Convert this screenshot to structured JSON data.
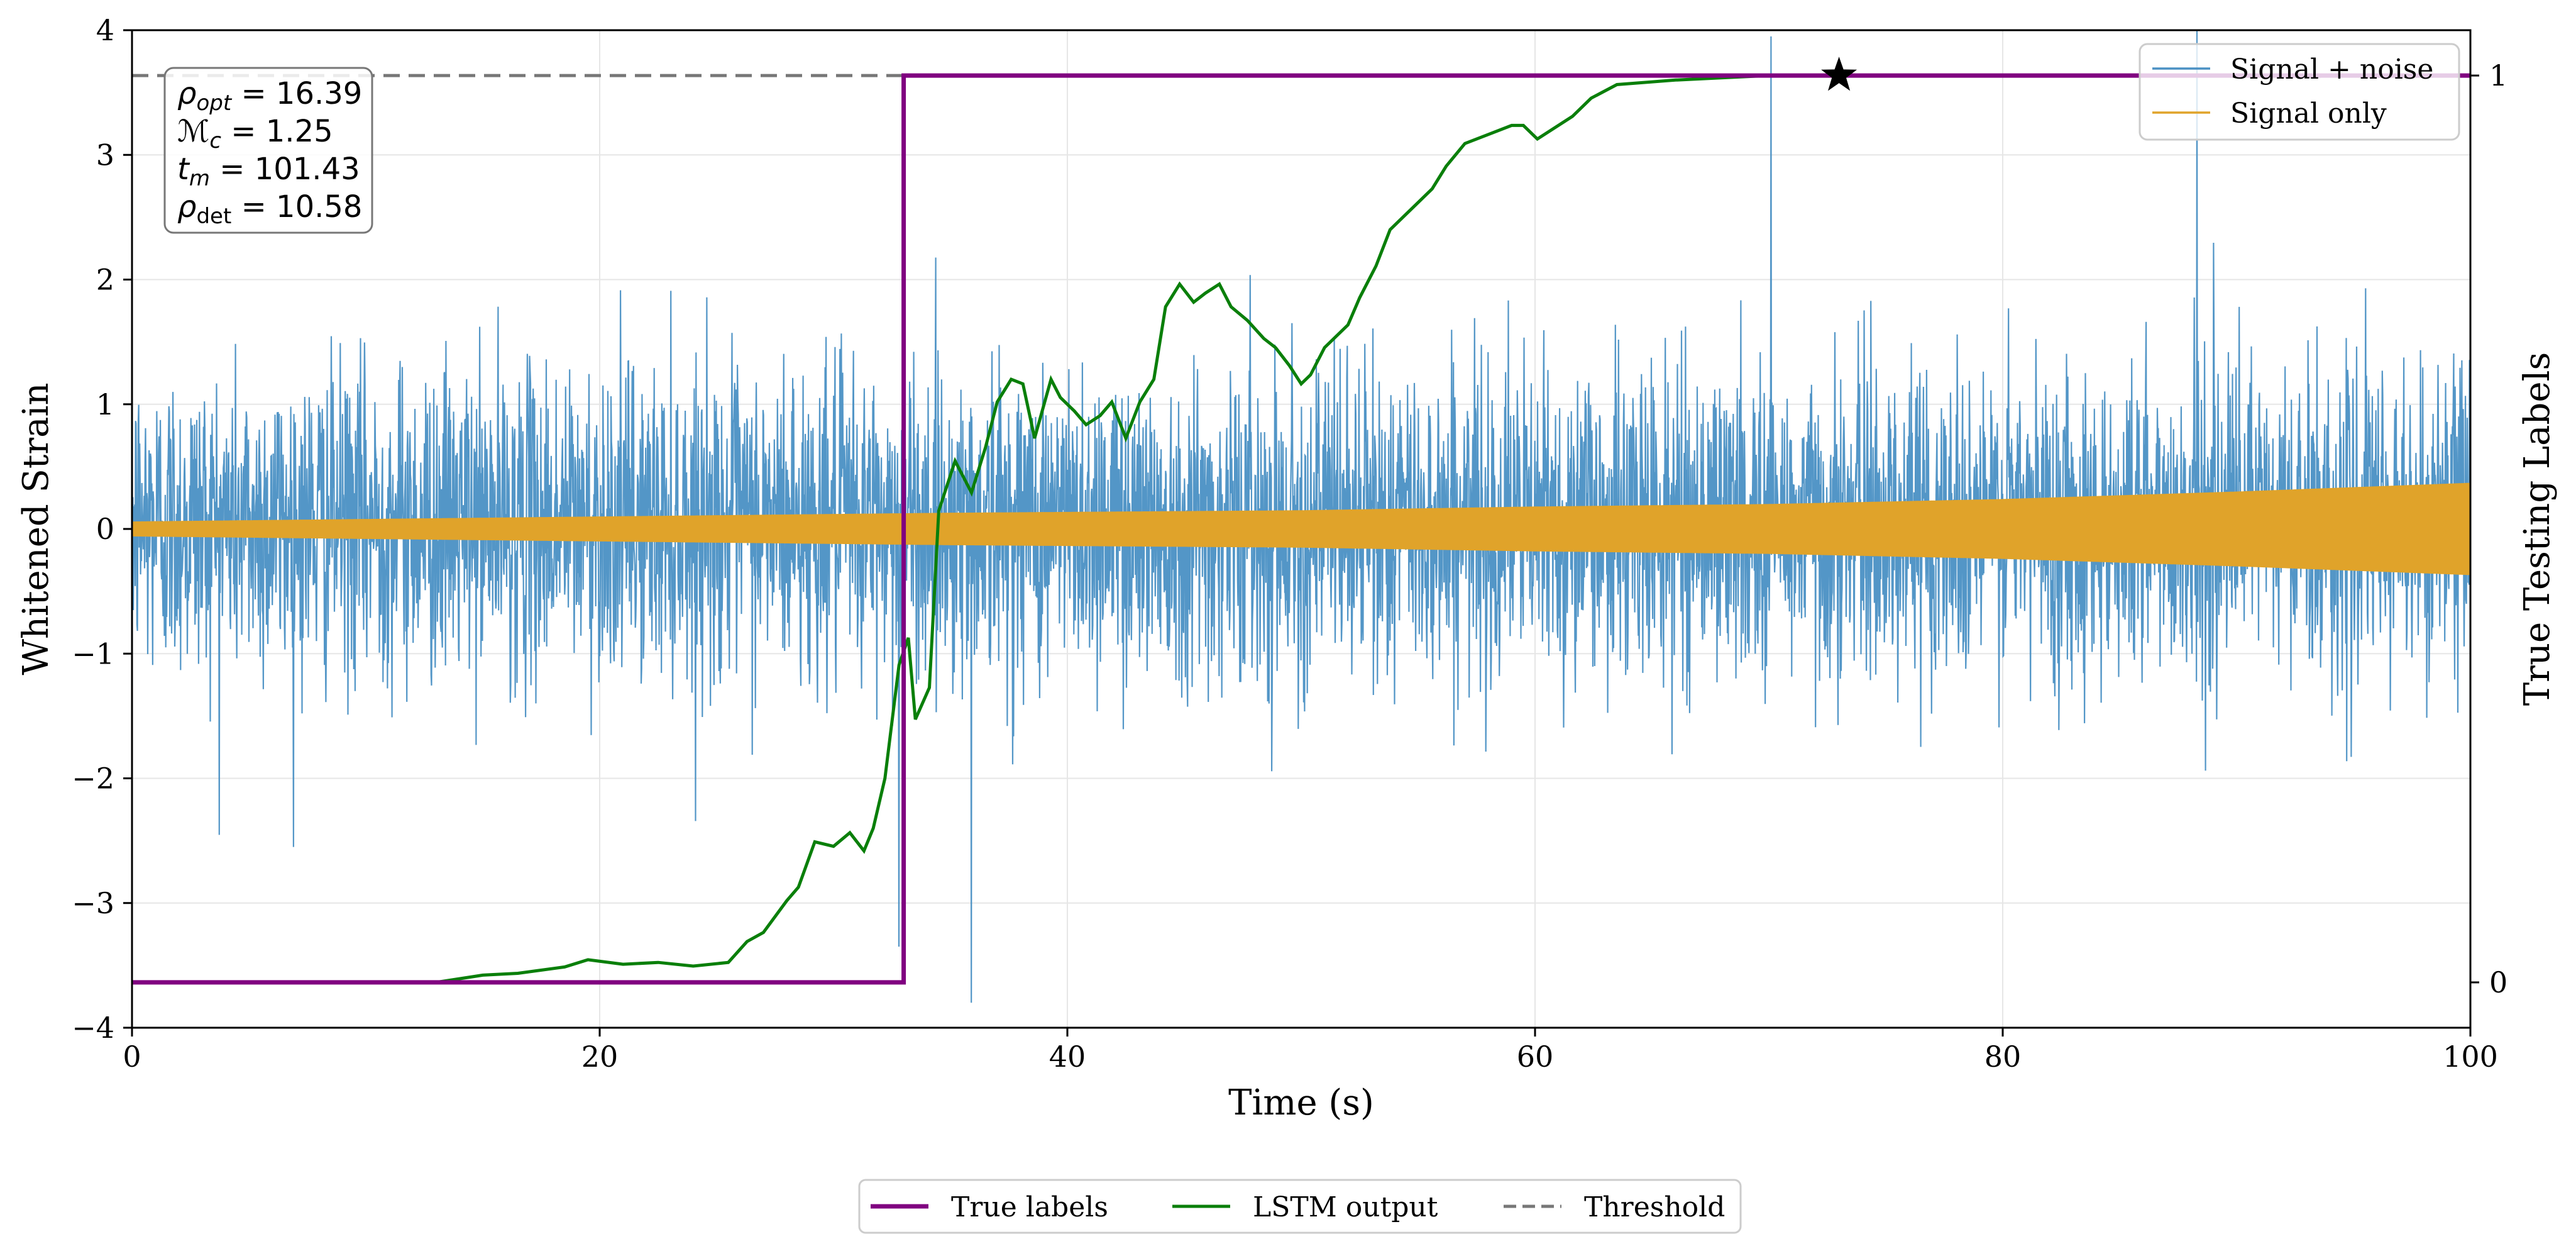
{
  "chart_data": {
    "type": "line",
    "xlabel": "Time (s)",
    "ylabel": "Whitened Strain",
    "y2label": "True Testing Labels",
    "xlim": [
      0,
      100
    ],
    "ylim": [
      -4,
      4
    ],
    "y2lim": [
      -0.05,
      1.05
    ],
    "xticks": [
      0,
      20,
      40,
      60,
      80,
      100
    ],
    "xtick_labels": [
      "0",
      "20",
      "40",
      "60",
      "80",
      "100"
    ],
    "yticks": [
      -4,
      -3,
      -2,
      -1,
      0,
      1,
      2,
      3,
      4
    ],
    "ytick_labels": [
      "−4",
      "−3",
      "−2",
      "−1",
      "0",
      "1",
      "2",
      "3",
      "4"
    ],
    "y2ticks": [
      0,
      1
    ],
    "y2tick_labels": [
      "0",
      "1"
    ],
    "grid": true,
    "series": [
      {
        "name": "Signal + noise",
        "axis": "left",
        "color": "#4a90c4",
        "description": "whitened noisy strain, roughly within ±2 with spikes to ±4",
        "typical_band": [
          -1.6,
          1.8
        ],
        "notable_peaks": [
          [
            70.1,
            3.95
          ],
          [
            88.3,
            4.0
          ],
          [
            35.9,
            -3.8
          ],
          [
            32.8,
            -3.35
          ]
        ]
      },
      {
        "name": "Signal only",
        "axis": "left",
        "color": "#e0a32a",
        "envelope": {
          "x": [
            0,
            20,
            35,
            50,
            60,
            70,
            80,
            90,
            100
          ],
          "amplitude": [
            0.06,
            0.1,
            0.13,
            0.15,
            0.18,
            0.2,
            0.24,
            0.3,
            0.37
          ]
        }
      },
      {
        "name": "True labels",
        "axis": "right",
        "color": "#800080",
        "x": [
          0,
          33,
          33,
          100
        ],
        "y": [
          0,
          0,
          1,
          1
        ]
      },
      {
        "name": "LSTM output",
        "axis": "right",
        "color": "#0a7f0a",
        "x": [
          0,
          13,
          15,
          16.5,
          18.5,
          19.5,
          21,
          22.5,
          24,
          25.5,
          26.3,
          27,
          28,
          28.5,
          29.2,
          30,
          30.7,
          31.3,
          31.7,
          32.2,
          32.8,
          33.2,
          33.5,
          34.1,
          34.5,
          35.2,
          35.9,
          36.5,
          37,
          37.6,
          38.1,
          38.6,
          39.3,
          39.7,
          40.3,
          40.8,
          41.4,
          41.9,
          42.5,
          43.1,
          43.7,
          44.2,
          44.8,
          45.4,
          45.9,
          46.5,
          47,
          47.7,
          48.4,
          48.9,
          49.5,
          50,
          50.4,
          51,
          52,
          52.5,
          53.2,
          53.8,
          54.2,
          55,
          55.6,
          56.2,
          57,
          58,
          59,
          59.5,
          60.1,
          61.6,
          62.4,
          63.5,
          66,
          70,
          75,
          100
        ],
        "y": [
          0,
          0,
          0.008,
          0.01,
          0.017,
          0.025,
          0.02,
          0.022,
          0.018,
          0.022,
          0.045,
          0.055,
          0.09,
          0.105,
          0.155,
          0.15,
          0.165,
          0.145,
          0.17,
          0.225,
          0.35,
          0.38,
          0.29,
          0.325,
          0.52,
          0.575,
          0.54,
          0.59,
          0.64,
          0.665,
          0.66,
          0.6,
          0.665,
          0.645,
          0.63,
          0.615,
          0.625,
          0.64,
          0.6,
          0.64,
          0.665,
          0.745,
          0.77,
          0.75,
          0.76,
          0.77,
          0.745,
          0.73,
          0.71,
          0.7,
          0.68,
          0.66,
          0.67,
          0.7,
          0.725,
          0.755,
          0.79,
          0.83,
          0.84,
          0.86,
          0.875,
          0.9,
          0.925,
          0.935,
          0.945,
          0.945,
          0.93,
          0.955,
          0.975,
          0.99,
          0.995,
          1.0,
          1.0,
          1.0
        ]
      },
      {
        "name": "Threshold",
        "axis": "right",
        "color": "#777777",
        "style": "dashed",
        "y": 1.0
      }
    ],
    "marker": {
      "shape": "star",
      "x": 73,
      "y": 1.0,
      "axis": "right"
    },
    "legend_upper": [
      "Signal + noise",
      "Signal only"
    ],
    "legend_lower": [
      "True labels",
      "LSTM output",
      "Threshold"
    ],
    "annotation_lines": [
      {
        "symbol": "ρ",
        "sub": "opt",
        "italic_sub": true,
        "value": "16.39"
      },
      {
        "symbol": "ℳ",
        "sub": "c",
        "italic_sub": true,
        "value": "1.25"
      },
      {
        "symbol": "t",
        "sub": "m",
        "italic_sub": true,
        "value": "101.43"
      },
      {
        "symbol": "ρ",
        "sub": "det",
        "italic_sub": false,
        "value": "10.58"
      }
    ]
  }
}
